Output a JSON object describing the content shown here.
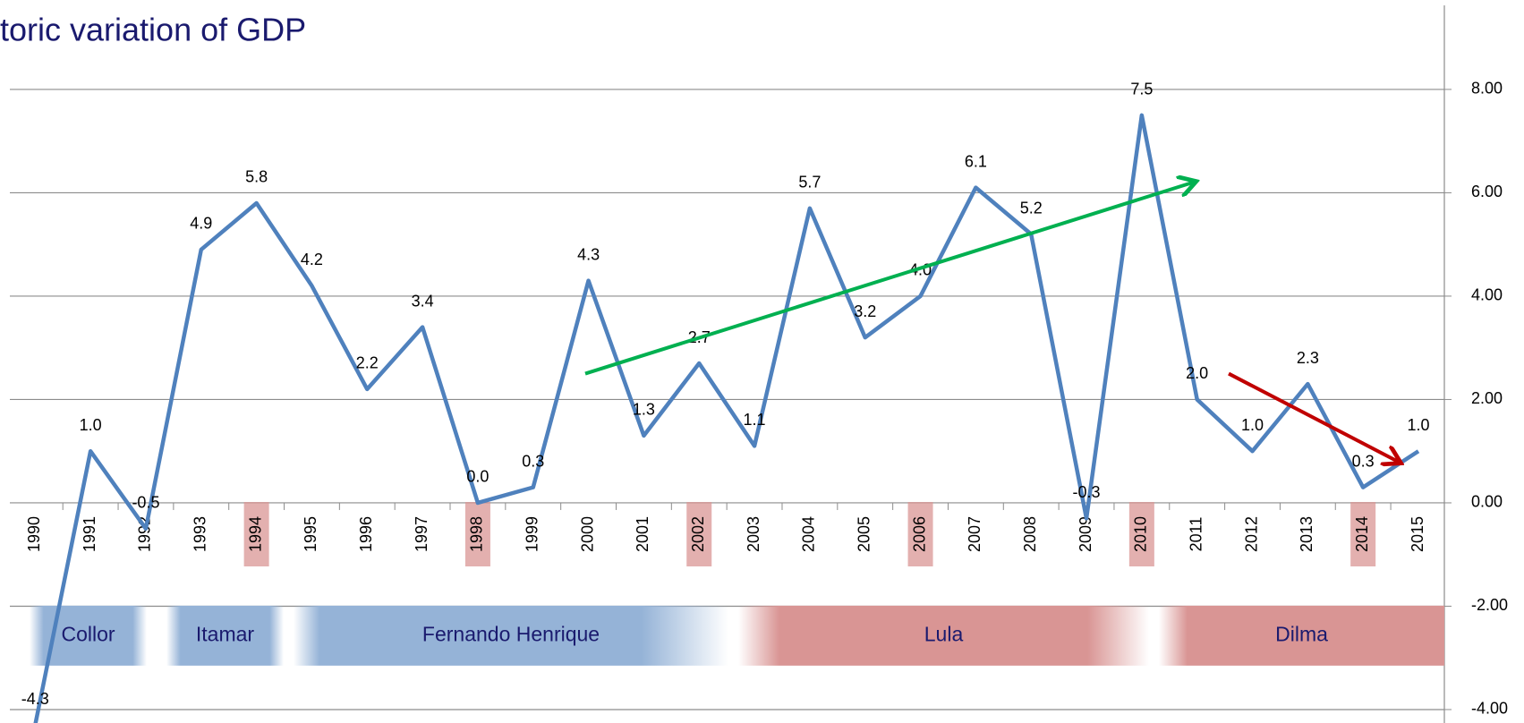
{
  "chart_data": {
    "type": "line",
    "title": "toric variation of GDP",
    "categories": [
      "1990",
      "1991",
      "1992",
      "1993",
      "1994",
      "1995",
      "1996",
      "1997",
      "1998",
      "1999",
      "2000",
      "2001",
      "2002",
      "2003",
      "2004",
      "2005",
      "2006",
      "2007",
      "2008",
      "2009",
      "2010",
      "2011",
      "2012",
      "2013",
      "2014",
      "2015"
    ],
    "series": [
      {
        "name": "GDP",
        "color": "#4f81bd",
        "values": [
          -4.3,
          1.0,
          -0.5,
          4.9,
          5.8,
          4.2,
          2.2,
          3.4,
          0.0,
          0.3,
          4.3,
          1.3,
          2.7,
          1.1,
          5.7,
          3.2,
          4.0,
          6.1,
          5.2,
          -0.3,
          7.5,
          2.0,
          1.0,
          2.3,
          0.3,
          1.0
        ],
        "value_labels": [
          "-4.3",
          "1.0",
          "-0.5",
          "4.9",
          "5.8",
          "4.2",
          "2.2",
          "3.4",
          "0.0",
          "0.3",
          "4.3",
          "1.3",
          "2.7",
          "1.1",
          "5.7",
          "3.2",
          "4.0",
          "6.1",
          "5.2",
          "-0.3",
          "7.5",
          "2.0",
          "1.0",
          "2.3",
          "0.3",
          "1.0"
        ]
      }
    ],
    "ylim": [
      -4.26,
      9.73
    ],
    "yticks": [
      {
        "value": -4,
        "label": "-4.00"
      },
      {
        "value": -2,
        "label": "-2.00"
      },
      {
        "value": 0,
        "label": "0.00"
      },
      {
        "value": 2,
        "label": "2.00"
      },
      {
        "value": 4,
        "label": "4.00"
      },
      {
        "value": 6,
        "label": "6.00"
      },
      {
        "value": 8,
        "label": "8.00"
      }
    ],
    "y_axis_side": "right",
    "grid": true,
    "highlight_color": "#d99594",
    "bands": [
      {
        "label": "Collor",
        "color": "#95b3d7"
      },
      {
        "label": "Itamar",
        "color": "#95b3d7"
      },
      {
        "label": "Fernando Henrique",
        "color": "#95b3d7"
      },
      {
        "label": "Lula",
        "color": "#d99594"
      },
      {
        "label": "Dilma",
        "color": "#d99594"
      }
    ],
    "trend_colors": [
      "#00b050",
      "#c00000"
    ]
  }
}
